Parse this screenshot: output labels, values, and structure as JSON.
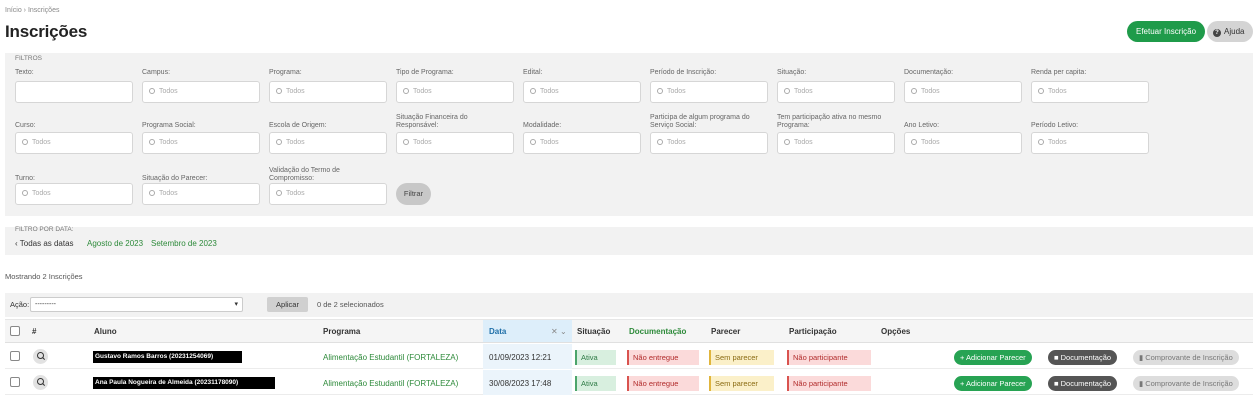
{
  "breadcrumb": "Início › Inscrições",
  "page_title": "Inscrições",
  "header_buttons": {
    "enroll": "Efetuar Inscrição",
    "help_icon": "help-circle-icon",
    "help": "Ajuda"
  },
  "filters": {
    "legend": "FILTROS",
    "placeholder": "Todos",
    "rows": [
      [
        "Texto:",
        "Campus:",
        "Programa:",
        "Tipo de Programa:",
        "Edital:",
        "Período de Inscrição:",
        "Situação:",
        "Documentação:",
        "Renda per capita:"
      ],
      [
        "Curso:",
        "Programa Social:",
        "Escola de Origem:",
        "Situação Financeira do Responsável:",
        "Modalidade:",
        "Participa de algum programa do Serviço Social:",
        "Tem participação ativa no mesmo Programa:",
        "Ano Letivo:",
        "Período Letivo:"
      ],
      [
        "Turno:",
        "Situação do Parecer:",
        "Validação do Termo de Compromisso:"
      ]
    ],
    "filter_button": "Filtrar"
  },
  "date_filter": {
    "legend": "FILTRO POR DATA:",
    "all": "‹ Todas as datas",
    "options": [
      "Agosto de 2023",
      "Setembro de 2023"
    ]
  },
  "results_count": "Mostrando 2 Inscrições",
  "actions": {
    "label": "Ação:",
    "selected": "---------",
    "apply": "Aplicar",
    "selection_count": "0 de 2 selecionados"
  },
  "table": {
    "headers": {
      "num": "#",
      "aluno": "Aluno",
      "programa": "Programa",
      "data": "Data",
      "situacao": "Situação",
      "documentacao": "Documentação",
      "parecer": "Parecer",
      "participacao": "Participação",
      "opcoes": "Opções"
    },
    "rows": [
      {
        "aluno": "Gustavo Ramos Barros (20231254069)",
        "programa": "Alimentação Estudantil (FORTALEZA)",
        "data": "01/09/2023 12:21",
        "situacao": "Ativa",
        "documentacao": "Não entregue",
        "parecer": "Sem parecer",
        "participacao": "Não participante"
      },
      {
        "aluno": "Ana Paula Nogueira de Almeida (20231178090)",
        "programa": "Alimentação Estudantil (FORTALEZA)",
        "data": "30/08/2023 17:48",
        "situacao": "Ativa",
        "documentacao": "Não entregue",
        "parecer": "Sem parecer",
        "participacao": "Não participante"
      }
    ],
    "row_actions": {
      "add": "+ Adicionar Parecer",
      "docs": "Documentação",
      "receipt": "Comprovante de Inscrição"
    }
  },
  "colors": {
    "primary_green": "#1f9b4a",
    "link_green": "#2d8a3a",
    "panel_grey": "#f2f2f2"
  }
}
